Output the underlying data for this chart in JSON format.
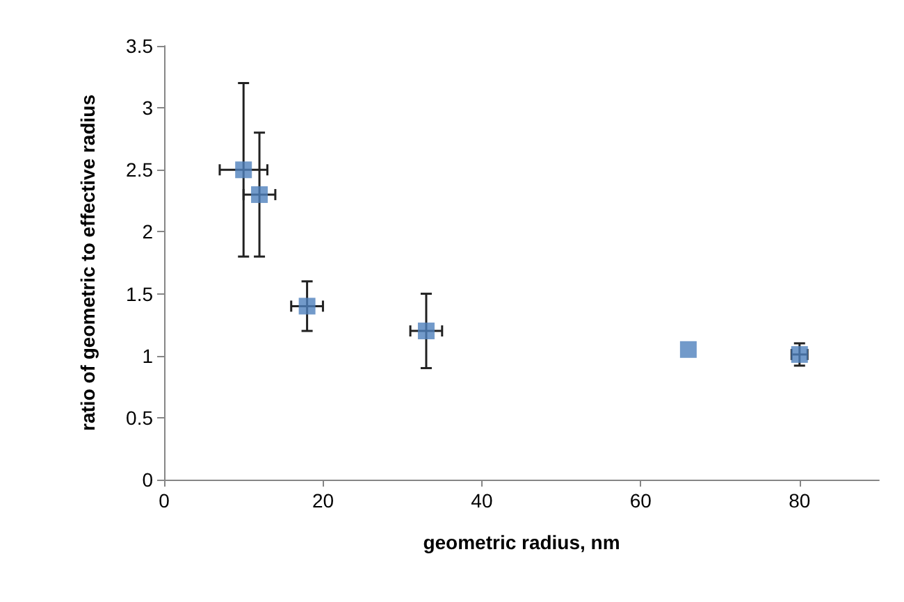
{
  "chart_data": {
    "type": "scatter",
    "xlabel": "geometric radius, nm",
    "ylabel": "ratio of geometric to effective radius",
    "x": [
      10,
      12,
      18,
      33,
      66,
      80
    ],
    "series": [
      {
        "color": "#4f81bd",
        "values": [
          2.5,
          2.3,
          1.4,
          1.2,
          1.05,
          1.01
        ],
        "errors": [
          [
            1.8,
            3.2
          ],
          [
            1.8,
            2.8
          ],
          [
            1.2,
            1.6
          ],
          [
            0.9,
            1.5
          ],
          null,
          [
            0.92,
            1.1
          ]
        ],
        "xerrors": [
          3,
          2,
          2,
          2,
          null,
          1
        ]
      }
    ],
    "xlim": [
      0,
      90
    ],
    "xticks": [
      0,
      20,
      40,
      60,
      80
    ],
    "ylim": [
      0,
      3.5
    ],
    "yticks": [
      0,
      0.5,
      1,
      1.5,
      2,
      2.5,
      3,
      3.5
    ],
    "marker": "square",
    "grid": false,
    "legend": false
  }
}
